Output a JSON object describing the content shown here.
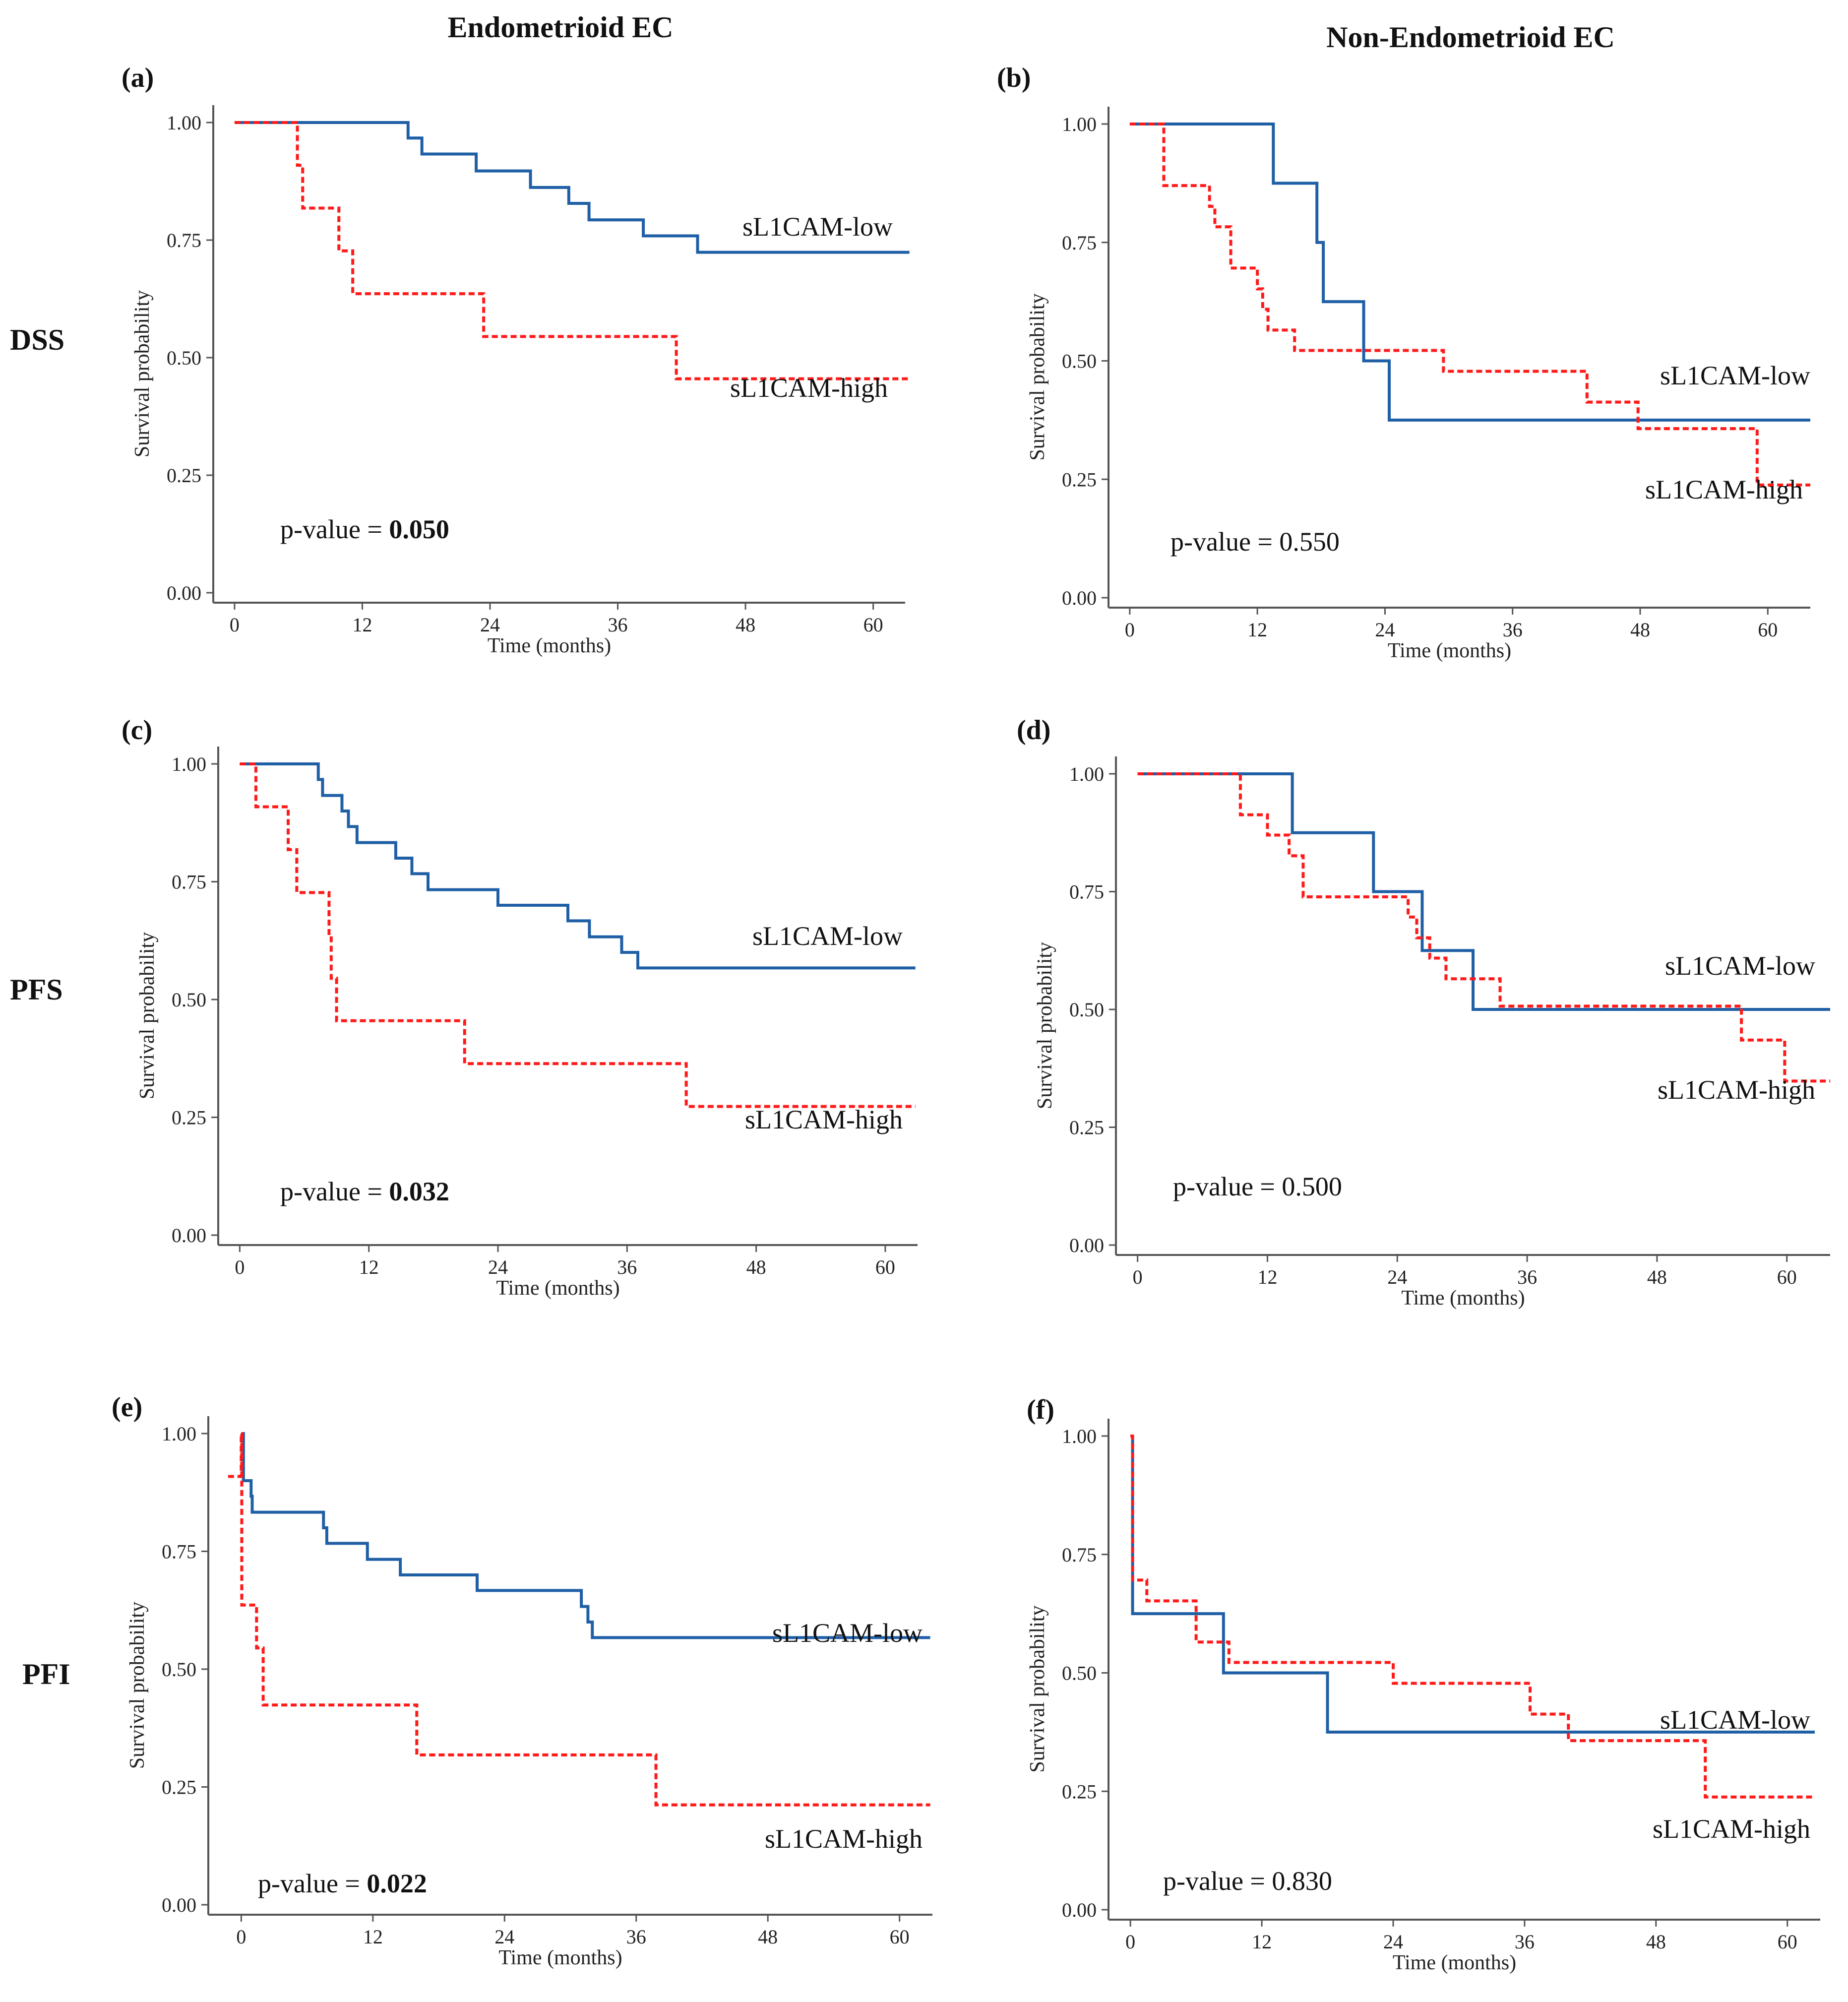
{
  "column_titles": [
    "Endometrioid EC",
    "Non-Endometrioid EC"
  ],
  "row_labels": [
    "DSS",
    "PFS",
    "PFI"
  ],
  "colors": {
    "low": "#1f5fa6",
    "high": "#ff1a1a",
    "axis": "#555555"
  },
  "chart_data": [
    {
      "type": "line",
      "panel": "(a)",
      "xlabel": "Time (months)",
      "ylabel": "Survival probability",
      "xticks": [
        "0",
        "12",
        "24",
        "36",
        "48",
        "60"
      ],
      "yticks": [
        "0.00",
        "0.25",
        "0.50",
        "0.75",
        "1.00"
      ],
      "xlim": [
        -2,
        63
      ],
      "ylim": [
        0,
        1
      ],
      "pvalue_prefix": "p-value = ",
      "pvalue": "0.050",
      "pvalue_bold": true,
      "series": [
        {
          "name": "sL1CAM-low",
          "style": "solid",
          "steps": [
            [
              0,
              1.0
            ],
            [
              16.3,
              0.967
            ],
            [
              17.6,
              0.933
            ],
            [
              22.7,
              0.897
            ],
            [
              27.8,
              0.862
            ],
            [
              31.4,
              0.828
            ],
            [
              33.3,
              0.793
            ],
            [
              38.4,
              0.759
            ],
            [
              43.5,
              0.724
            ],
            [
              63.4,
              0.724
            ]
          ]
        },
        {
          "name": "sL1CAM-high",
          "style": "dashed",
          "steps": [
            [
              0,
              1.0
            ],
            [
              5.9,
              0.909
            ],
            [
              6.4,
              0.818
            ],
            [
              9.8,
              0.727
            ],
            [
              11.1,
              0.636
            ],
            [
              23.4,
              0.545
            ],
            [
              41.5,
              0.455
            ],
            [
              63.4,
              0.455
            ]
          ]
        }
      ]
    },
    {
      "type": "line",
      "panel": "(b)",
      "xlabel": "Time (months)",
      "ylabel": "Survival probability",
      "xticks": [
        "0",
        "12",
        "24",
        "36",
        "48",
        "60"
      ],
      "yticks": [
        "0.00",
        "0.25",
        "0.50",
        "0.75",
        "1.00"
      ],
      "xlim": [
        -2,
        64
      ],
      "ylim": [
        0,
        1
      ],
      "pvalue_prefix": "p-value = ",
      "pvalue": "0.550",
      "pvalue_bold": false,
      "series": [
        {
          "name": "sL1CAM-low",
          "style": "solid",
          "steps": [
            [
              0,
              1.0
            ],
            [
              13.5,
              0.875
            ],
            [
              17.6,
              0.75
            ],
            [
              18.2,
              0.625
            ],
            [
              22.0,
              0.5
            ],
            [
              24.4,
              0.375
            ],
            [
              64,
              0.375
            ]
          ]
        },
        {
          "name": "sL1CAM-high",
          "style": "dashed",
          "steps": [
            [
              0,
              1.0
            ],
            [
              3.2,
              0.87
            ],
            [
              7.5,
              0.826
            ],
            [
              8.0,
              0.783
            ],
            [
              9.5,
              0.696
            ],
            [
              12.0,
              0.652
            ],
            [
              12.5,
              0.609
            ],
            [
              13.0,
              0.565
            ],
            [
              15.5,
              0.522
            ],
            [
              29.5,
              0.478
            ],
            [
              43.0,
              0.413
            ],
            [
              47.8,
              0.357
            ],
            [
              59.0,
              0.238
            ],
            [
              64,
              0.238
            ]
          ]
        }
      ]
    },
    {
      "type": "line",
      "panel": "(c)",
      "xlabel": "Time (months)",
      "ylabel": "Survival probability",
      "xticks": [
        "0",
        "12",
        "24",
        "36",
        "48",
        "60"
      ],
      "yticks": [
        "0.00",
        "0.25",
        "0.50",
        "0.75",
        "1.00"
      ],
      "xlim": [
        -2,
        63
      ],
      "ylim": [
        0,
        1
      ],
      "pvalue_prefix": "p-value = ",
      "pvalue": "0.032",
      "pvalue_bold": true,
      "series": [
        {
          "name": "sL1CAM-low",
          "style": "solid",
          "steps": [
            [
              0,
              1.0
            ],
            [
              7.3,
              0.967
            ],
            [
              7.7,
              0.933
            ],
            [
              9.5,
              0.9
            ],
            [
              10.1,
              0.867
            ],
            [
              10.9,
              0.833
            ],
            [
              14.5,
              0.8
            ],
            [
              16.0,
              0.767
            ],
            [
              17.5,
              0.733
            ],
            [
              24.0,
              0.7
            ],
            [
              30.5,
              0.667
            ],
            [
              32.5,
              0.633
            ],
            [
              35.5,
              0.6
            ],
            [
              37.0,
              0.567
            ],
            [
              62.8,
              0.567
            ]
          ]
        },
        {
          "name": "sL1CAM-high",
          "style": "dashed",
          "steps": [
            [
              0,
              1.0
            ],
            [
              1.5,
              0.909
            ],
            [
              4.5,
              0.818
            ],
            [
              5.3,
              0.727
            ],
            [
              8.3,
              0.636
            ],
            [
              8.5,
              0.545
            ],
            [
              9.0,
              0.455
            ],
            [
              20.9,
              0.364
            ],
            [
              41.5,
              0.273
            ],
            [
              62.8,
              0.273
            ]
          ]
        }
      ]
    },
    {
      "type": "line",
      "panel": "(d)",
      "xlabel": "Time (months)",
      "ylabel": "Survival probability",
      "xticks": [
        "0",
        "12",
        "24",
        "36",
        "48",
        "60"
      ],
      "yticks": [
        "0.00",
        "0.25",
        "0.50",
        "0.75",
        "1.00"
      ],
      "xlim": [
        -2,
        64
      ],
      "ylim": [
        0,
        1
      ],
      "pvalue_prefix": "p-value = ",
      "pvalue": "0.500",
      "pvalue_bold": false,
      "series": [
        {
          "name": "sL1CAM-low",
          "style": "solid",
          "steps": [
            [
              0,
              1.0
            ],
            [
              14.3,
              0.875
            ],
            [
              21.8,
              0.75
            ],
            [
              26.3,
              0.625
            ],
            [
              31.0,
              0.5
            ],
            [
              64,
              0.5
            ]
          ]
        },
        {
          "name": "sL1CAM-high",
          "style": "dashed",
          "steps": [
            [
              0,
              1.0
            ],
            [
              9.5,
              0.913
            ],
            [
              12.0,
              0.87
            ],
            [
              14.0,
              0.826
            ],
            [
              15.3,
              0.739
            ],
            [
              25.0,
              0.696
            ],
            [
              25.8,
              0.652
            ],
            [
              27.0,
              0.609
            ],
            [
              28.5,
              0.565
            ],
            [
              33.5,
              0.507
            ],
            [
              55.8,
              0.435
            ],
            [
              59.8,
              0.348
            ],
            [
              64,
              0.348
            ]
          ]
        }
      ]
    },
    {
      "type": "line",
      "panel": "(e)",
      "xlabel": "Time (months)",
      "ylabel": "Survival probability",
      "xticks": [
        "0",
        "12",
        "24",
        "36",
        "48",
        "60"
      ],
      "yticks": [
        "0.00",
        "0.25",
        "0.50",
        "0.75",
        "1.00"
      ],
      "xlim": [
        -3,
        63
      ],
      "ylim": [
        0,
        1
      ],
      "pvalue_prefix": "p-value = ",
      "pvalue": "0.022",
      "pvalue_bold": true,
      "series": [
        {
          "name": "sL1CAM-low",
          "style": "solid",
          "steps": [
            [
              0,
              1.0
            ],
            [
              0.2,
              0.9
            ],
            [
              0.9,
              0.867
            ],
            [
              1.0,
              0.833
            ],
            [
              7.5,
              0.8
            ],
            [
              7.8,
              0.767
            ],
            [
              11.5,
              0.733
            ],
            [
              14.5,
              0.7
            ],
            [
              21.5,
              0.667
            ],
            [
              31.0,
              0.633
            ],
            [
              31.6,
              0.6
            ],
            [
              32.0,
              0.567
            ],
            [
              62.8,
              0.567
            ]
          ]
        },
        {
          "name": "sL1CAM-high",
          "style": "dashed",
          "steps": [
            [
              -1.2,
              0.909
            ],
            [
              0,
              0.909
            ],
            [
              0,
              1.0
            ],
            [
              0.05,
              0.636
            ],
            [
              1.4,
              0.545
            ],
            [
              2.0,
              0.424
            ],
            [
              16.0,
              0.318
            ],
            [
              37.8,
              0.212
            ],
            [
              62.8,
              0.212
            ]
          ]
        }
      ]
    },
    {
      "type": "line",
      "panel": "(f)",
      "xlabel": "Time (months)",
      "ylabel": "Survival probability",
      "xticks": [
        "0",
        "12",
        "24",
        "36",
        "48",
        "60"
      ],
      "yticks": [
        "0.00",
        "0.25",
        "0.50",
        "0.75",
        "1.00"
      ],
      "xlim": [
        -2,
        63
      ],
      "ylim": [
        0,
        1
      ],
      "pvalue_prefix": "p-value = ",
      "pvalue": "0.830",
      "pvalue_bold": false,
      "series": [
        {
          "name": "sL1CAM-low",
          "style": "solid",
          "steps": [
            [
              0,
              1.0
            ],
            [
              0.2,
              0.625
            ],
            [
              8.5,
              0.5
            ],
            [
              18.0,
              0.375
            ],
            [
              62.5,
              0.375
            ]
          ]
        },
        {
          "name": "sL1CAM-high",
          "style": "dashed",
          "steps": [
            [
              0,
              1.0
            ],
            [
              0.2,
              0.696
            ],
            [
              1.5,
              0.652
            ],
            [
              6.0,
              0.565
            ],
            [
              9.0,
              0.522
            ],
            [
              24.0,
              0.478
            ],
            [
              36.5,
              0.413
            ],
            [
              40.0,
              0.357
            ],
            [
              52.5,
              0.238
            ],
            [
              62.5,
              0.238
            ]
          ]
        }
      ]
    }
  ]
}
